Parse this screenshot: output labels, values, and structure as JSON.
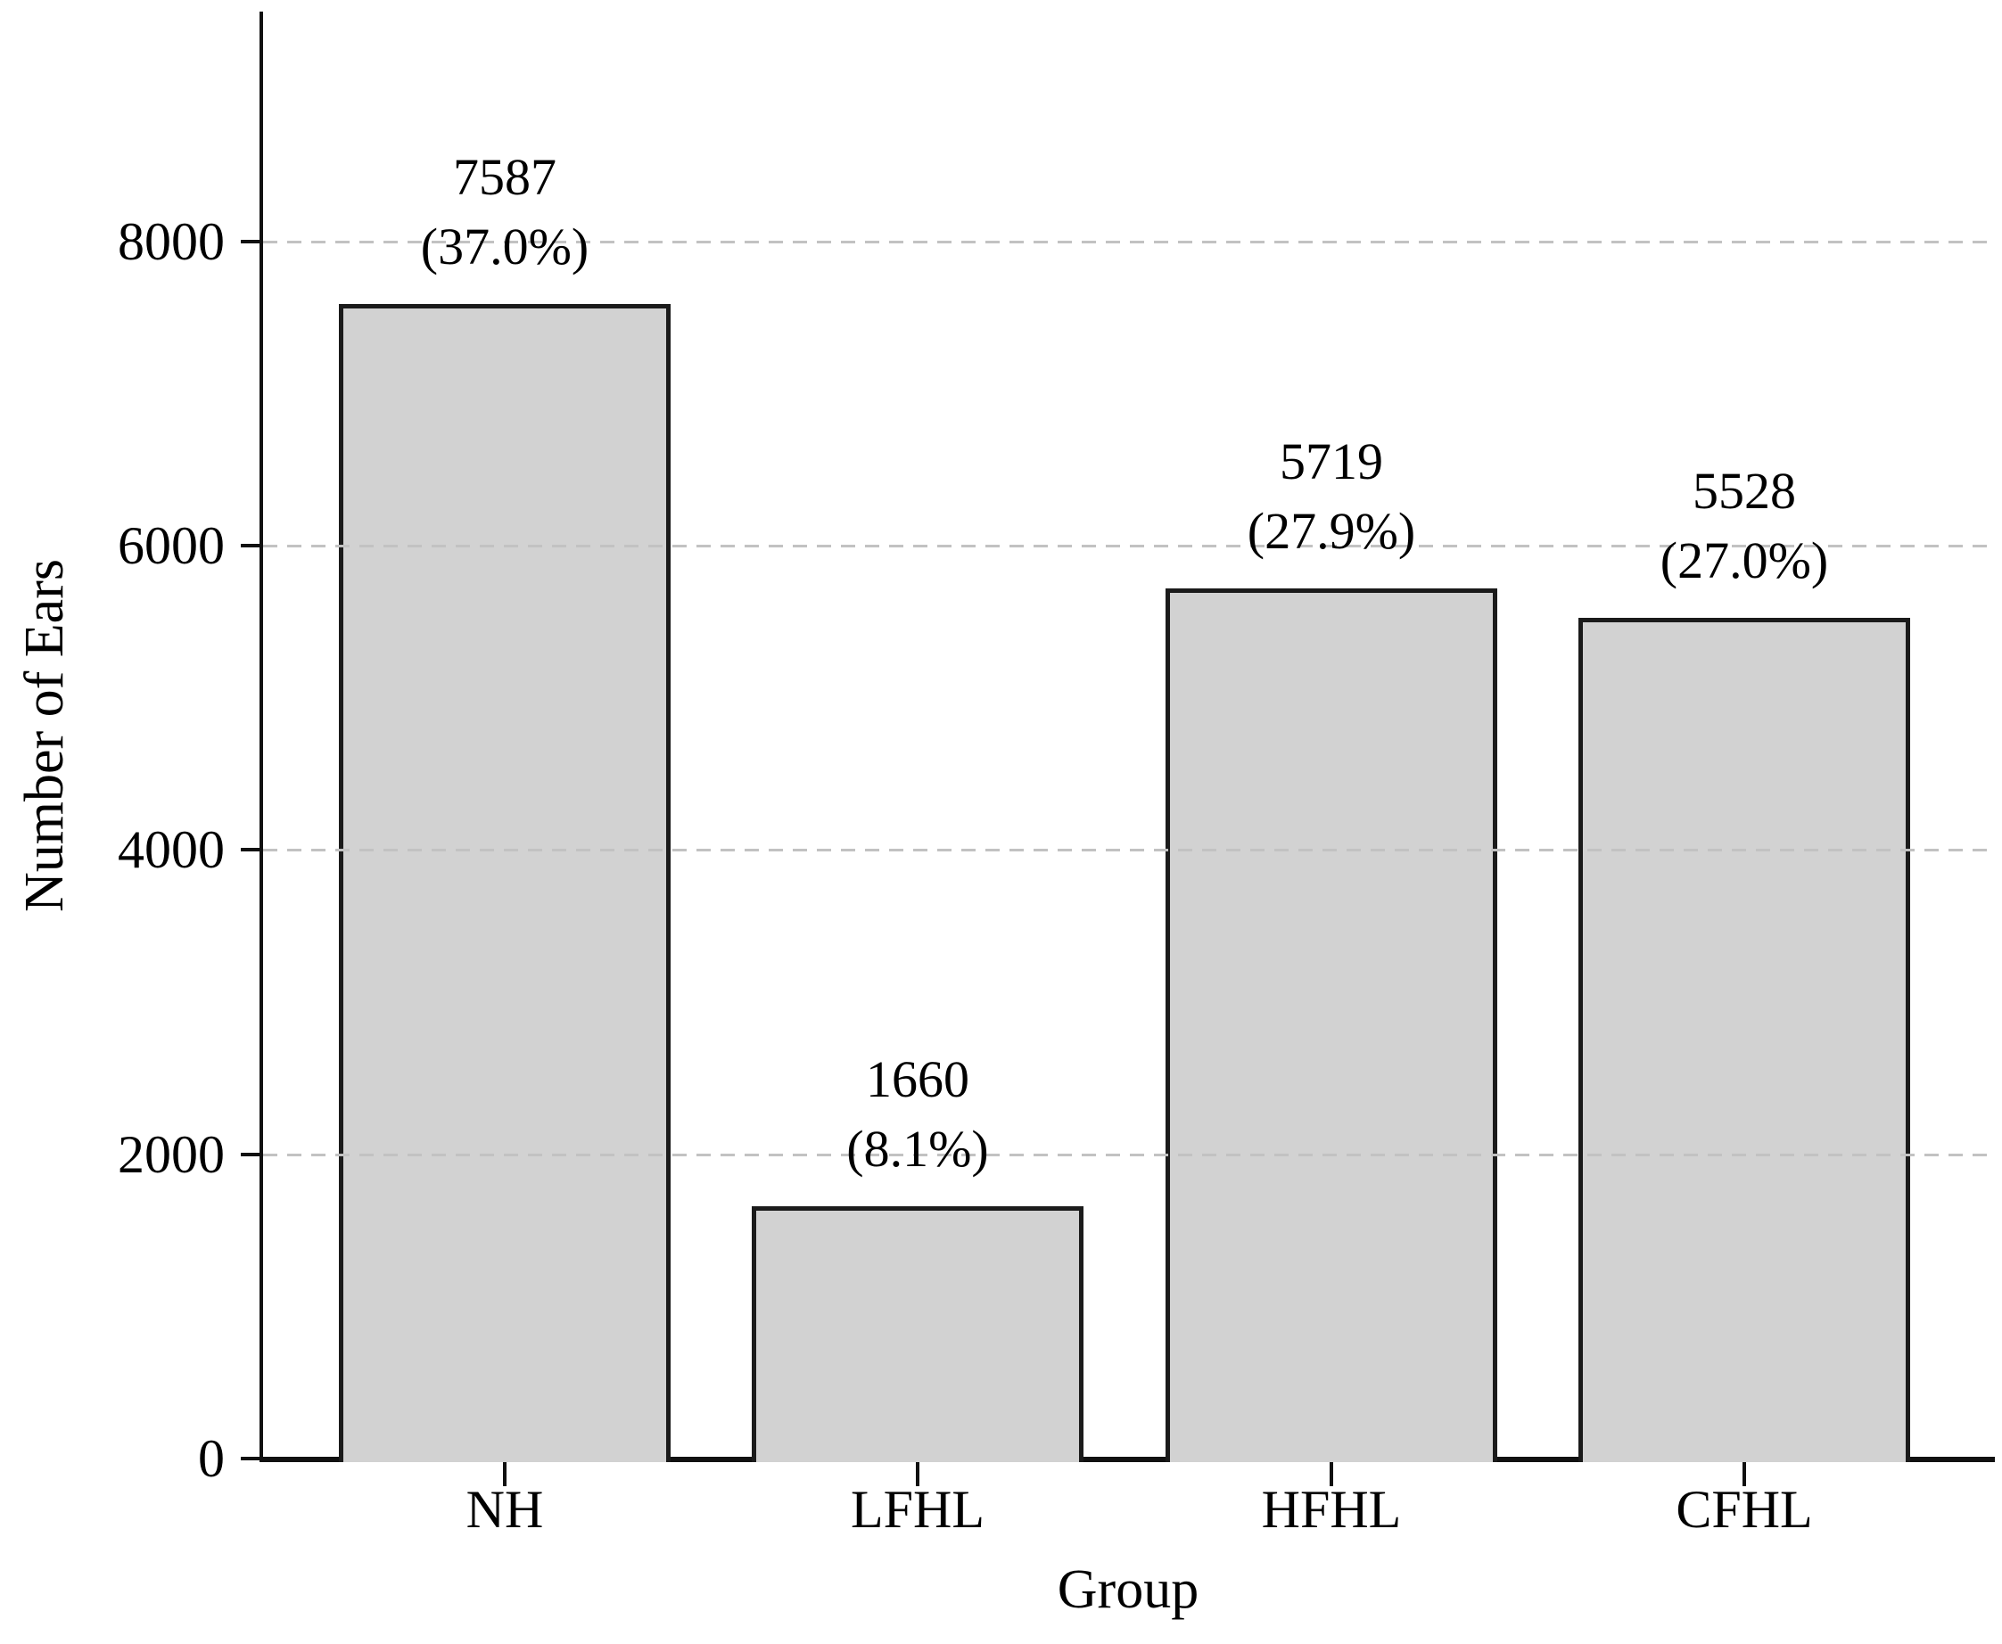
{
  "chart_data": {
    "type": "bar",
    "title": "",
    "xlabel": "Group",
    "ylabel": "Number of Ears",
    "categories": [
      "NH",
      "LFHL",
      "HFHL",
      "CFHL"
    ],
    "values": [
      7587,
      1660,
      5719,
      5528
    ],
    "bar_labels": [
      "7587\n(37.0%)",
      "1660\n(8.1%)",
      "5719\n(27.9%)",
      "5528\n(27.0%)"
    ],
    "percentages": [
      37.0,
      8.1,
      27.9,
      27.0
    ],
    "yticks": [
      "0",
      "2000",
      "4000",
      "6000",
      "8000"
    ],
    "ytick_values": [
      0,
      2000,
      4000,
      6000,
      8000
    ],
    "ylim": [
      0,
      9520
    ],
    "grid": "horizontal-dashed",
    "legend_position": "none",
    "colors": {
      "bar_fill": "#d2d2d2",
      "bar_edge": "#1b1b1b",
      "gridline": "#c2c2c2",
      "axis": "#111111",
      "text": "#000000",
      "background": "#ffffff"
    }
  }
}
